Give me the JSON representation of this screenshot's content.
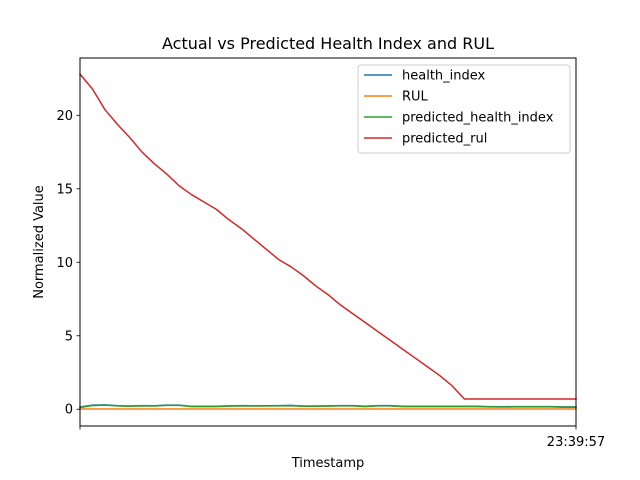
{
  "chart_data": {
    "type": "line",
    "title": "Actual vs Predicted Health Index and RUL",
    "xlabel": "Timestamp",
    "ylabel": "Normalized Value",
    "x_tick_labels": [
      "",
      "23:39:57"
    ],
    "y_ticks": [
      0,
      5,
      10,
      15,
      20
    ],
    "ylim": [
      -1.14,
      23.9
    ],
    "grid": false,
    "legend_position": "top-right",
    "x": [
      0,
      1,
      2,
      3,
      4,
      5,
      6,
      7,
      8,
      9,
      10,
      11,
      12,
      13,
      14,
      15,
      16,
      17,
      18,
      19,
      20,
      21,
      22,
      23,
      24,
      25,
      26,
      27,
      28,
      29,
      30,
      31,
      32,
      33,
      34,
      35,
      36,
      37,
      38,
      39,
      40
    ],
    "series": [
      {
        "name": "health_index",
        "color": "#1f77b4",
        "values": [
          0.15,
          0.28,
          0.3,
          0.25,
          0.22,
          0.25,
          0.24,
          0.28,
          0.28,
          0.2,
          0.2,
          0.2,
          0.23,
          0.25,
          0.24,
          0.24,
          0.25,
          0.26,
          0.22,
          0.22,
          0.23,
          0.25,
          0.25,
          0.2,
          0.25,
          0.25,
          0.2,
          0.2,
          0.2,
          0.2,
          0.2,
          0.2,
          0.2,
          0.18,
          0.17,
          0.18,
          0.18,
          0.18,
          0.18,
          0.16,
          0.16
        ]
      },
      {
        "name": "RUL",
        "color": "#ff7f0e",
        "values": [
          0.02,
          0.02,
          0.02,
          0.02,
          0.02,
          0.02,
          0.02,
          0.02,
          0.02,
          0.02,
          0.02,
          0.02,
          0.02,
          0.02,
          0.02,
          0.02,
          0.02,
          0.02,
          0.02,
          0.02,
          0.02,
          0.02,
          0.02,
          0.02,
          0.02,
          0.02,
          0.02,
          0.02,
          0.02,
          0.02,
          0.02,
          0.02,
          0.02,
          0.02,
          0.02,
          0.02,
          0.02,
          0.02,
          0.02,
          0.02,
          0.02
        ]
      },
      {
        "name": "predicted_health_index",
        "color": "#2ca02c",
        "values": [
          0.12,
          0.25,
          0.28,
          0.23,
          0.2,
          0.23,
          0.22,
          0.26,
          0.26,
          0.18,
          0.18,
          0.18,
          0.21,
          0.23,
          0.22,
          0.22,
          0.23,
          0.24,
          0.2,
          0.2,
          0.21,
          0.23,
          0.23,
          0.18,
          0.23,
          0.23,
          0.18,
          0.18,
          0.18,
          0.18,
          0.18,
          0.18,
          0.18,
          0.16,
          0.15,
          0.16,
          0.16,
          0.16,
          0.16,
          0.14,
          0.14
        ]
      },
      {
        "name": "predicted_rul",
        "color": "#d62728",
        "values": [
          22.8,
          21.8,
          20.4,
          19.4,
          18.5,
          17.5,
          16.7,
          16.0,
          15.2,
          14.6,
          14.1,
          13.6,
          12.9,
          12.3,
          11.6,
          10.9,
          10.2,
          9.7,
          9.1,
          8.4,
          7.8,
          7.1,
          6.5,
          5.9,
          5.3,
          4.7,
          4.1,
          3.5,
          2.9,
          2.3,
          1.6,
          0.7,
          0.7,
          0.7,
          0.7,
          0.7,
          0.7,
          0.7,
          0.7,
          0.7,
          0.7
        ]
      }
    ]
  }
}
